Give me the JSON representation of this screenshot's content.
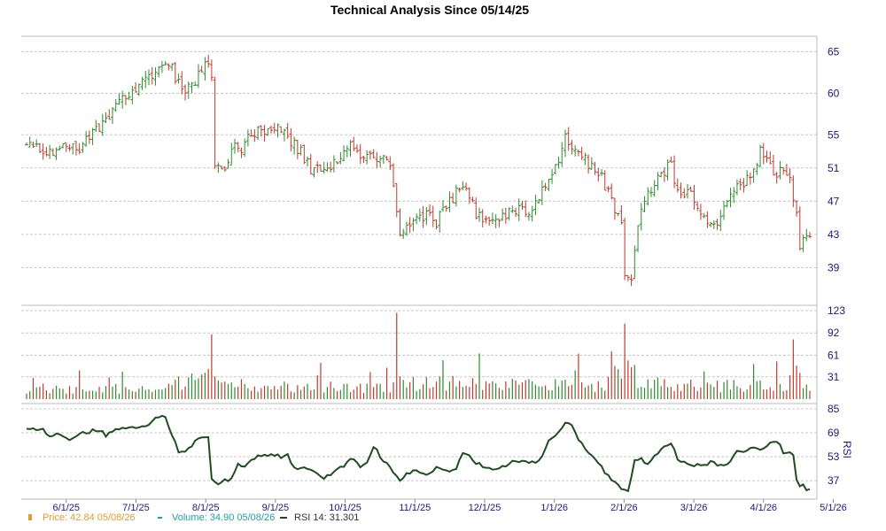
{
  "chart_data": {
    "type": "candlestick+volume+line",
    "title": "Technical Analysis Since 05/14/25",
    "x_tick_labels": [
      "6/1/25",
      "7/1/25",
      "8/1/25",
      "9/1/25",
      "10/1/25",
      "11/1/25",
      "12/1/25",
      "1/1/26",
      "2/1/26",
      "3/1/26",
      "4/1/26",
      "5/1/26"
    ],
    "price_axis": {
      "ticks": [
        39,
        43,
        47,
        51,
        55,
        60,
        65
      ],
      "range": [
        35,
        66
      ]
    },
    "volume_axis": {
      "ticks": [
        31,
        61,
        92,
        123
      ],
      "range": [
        0,
        123
      ]
    },
    "rsi_axis": {
      "ticks": [
        37,
        53,
        69,
        85
      ],
      "range": [
        27,
        85
      ],
      "label": "RSI"
    },
    "grid": true,
    "colors": {
      "up": "#2e8b2e",
      "down": "#c0392b",
      "rsi": "#1f4d1f",
      "price_legend": "#e39b2e",
      "volume_legend": "#20a0a0",
      "axis_text": "#1a1a80"
    },
    "legend": [
      {
        "label": "Price: 42.84  05/08/26",
        "color": "#e39b2e"
      },
      {
        "label": "Volume: 34.90  05/08/26",
        "color": "#20a0a0"
      },
      {
        "label": "RSI 14: 31.301",
        "color": "#1f4d1f"
      }
    ],
    "price_anchors": [
      [
        0,
        54
      ],
      [
        3,
        53.5
      ],
      [
        6,
        53
      ],
      [
        8,
        53.2
      ],
      [
        10,
        54
      ],
      [
        13,
        53.5
      ],
      [
        15,
        53
      ],
      [
        18,
        54.5
      ],
      [
        20,
        55.2
      ],
      [
        23,
        56.5
      ],
      [
        26,
        58
      ],
      [
        29,
        59.5
      ],
      [
        32,
        60
      ],
      [
        35,
        61
      ],
      [
        38,
        62
      ],
      [
        40,
        63
      ],
      [
        42,
        64
      ],
      [
        44,
        63
      ],
      [
        46,
        61
      ],
      [
        48,
        60.5
      ],
      [
        50,
        61
      ],
      [
        52,
        62
      ],
      [
        54,
        63.5
      ],
      [
        56,
        62.5
      ],
      [
        57,
        51
      ],
      [
        59,
        50.5
      ],
      [
        61,
        51.5
      ],
      [
        63,
        54
      ],
      [
        65,
        53.5
      ],
      [
        68,
        55
      ],
      [
        71,
        55.5
      ],
      [
        74,
        56
      ],
      [
        77,
        55.5
      ],
      [
        80,
        54
      ],
      [
        83,
        53
      ],
      [
        86,
        51
      ],
      [
        89,
        50.5
      ],
      [
        92,
        51
      ],
      [
        95,
        52.5
      ],
      [
        98,
        53.5
      ],
      [
        101,
        52
      ],
      [
        104,
        53
      ],
      [
        107,
        52
      ],
      [
        110,
        51.5
      ],
      [
        113,
        43.5
      ],
      [
        115,
        44
      ],
      [
        118,
        45
      ],
      [
        121,
        45.5
      ],
      [
        124,
        44.5
      ],
      [
        127,
        46.5
      ],
      [
        130,
        48
      ],
      [
        133,
        48.5
      ],
      [
        136,
        45.5
      ],
      [
        139,
        45
      ],
      [
        142,
        44.5
      ],
      [
        145,
        45.5
      ],
      [
        148,
        46
      ],
      [
        151,
        45.5
      ],
      [
        155,
        47.5
      ],
      [
        158,
        50
      ],
      [
        161,
        52
      ],
      [
        163,
        54.5
      ],
      [
        165,
        53.5
      ],
      [
        168,
        52.5
      ],
      [
        171,
        51
      ],
      [
        174,
        50
      ],
      [
        176,
        48
      ],
      [
        178,
        46
      ],
      [
        180,
        44
      ],
      [
        181,
        38
      ],
      [
        183,
        37
      ],
      [
        185,
        44
      ],
      [
        187,
        47
      ],
      [
        190,
        49.5
      ],
      [
        193,
        50.5
      ],
      [
        195,
        51.5
      ],
      [
        196,
        48.5
      ],
      [
        198,
        48
      ],
      [
        201,
        48
      ],
      [
        204,
        45.5
      ],
      [
        206,
        45
      ],
      [
        209,
        44.5
      ],
      [
        211,
        46
      ],
      [
        213,
        47.5
      ],
      [
        215,
        49
      ],
      [
        218,
        49.5
      ],
      [
        220,
        51
      ],
      [
        222,
        53
      ],
      [
        224,
        51.5
      ],
      [
        226,
        50.5
      ],
      [
        229,
        50.5
      ],
      [
        231,
        50
      ],
      [
        233,
        45
      ],
      [
        234,
        41
      ],
      [
        235,
        42
      ],
      [
        237,
        42.8
      ]
    ],
    "volume_profile": [
      [
        0,
        13
      ],
      [
        40,
        14
      ],
      [
        56,
        28
      ],
      [
        58,
        18
      ],
      [
        110,
        15
      ],
      [
        112,
        35
      ],
      [
        115,
        20
      ],
      [
        175,
        18
      ],
      [
        181,
        50
      ],
      [
        183,
        35
      ],
      [
        186,
        20
      ],
      [
        230,
        15
      ],
      [
        232,
        42
      ],
      [
        234,
        30
      ],
      [
        237,
        12
      ]
    ],
    "rsi_anchors": [
      [
        0,
        72.5
      ],
      [
        5,
        71
      ],
      [
        7,
        67
      ],
      [
        10,
        67.5
      ],
      [
        13,
        63
      ],
      [
        16,
        68
      ],
      [
        19,
        70
      ],
      [
        22,
        71
      ],
      [
        24,
        67
      ],
      [
        27,
        71
      ],
      [
        30,
        72
      ],
      [
        32,
        73
      ],
      [
        35,
        73.5
      ],
      [
        38,
        76
      ],
      [
        40,
        80
      ],
      [
        42,
        79
      ],
      [
        44,
        68
      ],
      [
        46,
        56
      ],
      [
        48,
        57
      ],
      [
        51,
        63
      ],
      [
        53,
        66
      ],
      [
        55,
        67
      ],
      [
        56,
        39
      ],
      [
        58,
        34
      ],
      [
        60,
        37
      ],
      [
        62,
        38
      ],
      [
        64,
        48
      ],
      [
        66,
        47
      ],
      [
        68,
        51
      ],
      [
        71,
        54
      ],
      [
        74,
        55
      ],
      [
        77,
        53
      ],
      [
        79,
        54
      ],
      [
        81,
        46
      ],
      [
        84,
        45
      ],
      [
        87,
        43
      ],
      [
        90,
        39
      ],
      [
        93,
        42
      ],
      [
        96,
        47
      ],
      [
        99,
        52
      ],
      [
        101,
        46
      ],
      [
        103,
        50
      ],
      [
        105,
        60
      ],
      [
        108,
        50
      ],
      [
        110,
        46
      ],
      [
        113,
        37
      ],
      [
        115,
        41
      ],
      [
        118,
        44
      ],
      [
        121,
        41
      ],
      [
        124,
        45
      ],
      [
        127,
        43
      ],
      [
        130,
        46
      ],
      [
        132,
        56
      ],
      [
        134,
        53
      ],
      [
        136,
        49
      ],
      [
        139,
        45
      ],
      [
        142,
        44
      ],
      [
        145,
        47
      ],
      [
        148,
        50
      ],
      [
        151,
        49
      ],
      [
        155,
        50
      ],
      [
        158,
        63
      ],
      [
        161,
        70
      ],
      [
        163,
        76
      ],
      [
        165,
        75
      ],
      [
        167,
        65
      ],
      [
        169,
        58
      ],
      [
        171,
        54
      ],
      [
        174,
        46
      ],
      [
        176,
        40
      ],
      [
        178,
        37
      ],
      [
        180,
        32
      ],
      [
        182,
        31
      ],
      [
        184,
        50
      ],
      [
        186,
        52
      ],
      [
        188,
        48
      ],
      [
        191,
        55
      ],
      [
        193,
        59
      ],
      [
        195,
        62
      ],
      [
        197,
        52
      ],
      [
        199,
        49
      ],
      [
        202,
        47
      ],
      [
        205,
        48
      ],
      [
        207,
        49
      ],
      [
        209,
        48
      ],
      [
        212,
        48
      ],
      [
        213,
        51
      ],
      [
        215,
        56
      ],
      [
        218,
        58
      ],
      [
        220,
        59
      ],
      [
        222,
        57
      ],
      [
        224,
        61
      ],
      [
        226,
        63
      ],
      [
        228,
        62
      ],
      [
        229,
        56
      ],
      [
        231,
        55
      ],
      [
        232,
        54
      ],
      [
        233,
        38
      ],
      [
        234,
        33
      ],
      [
        235,
        35
      ],
      [
        236,
        31.3
      ]
    ],
    "bar_count": 238
  }
}
